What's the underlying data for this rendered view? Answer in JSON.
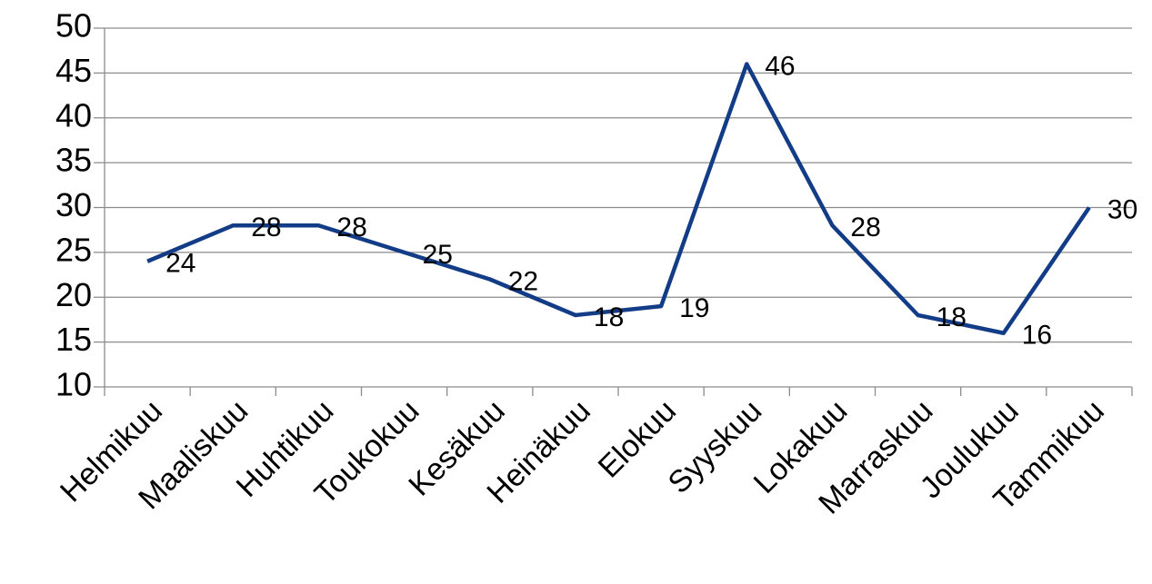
{
  "chart_data": {
    "type": "line",
    "categories": [
      "Helmikuu",
      "Maaliskuu",
      "Huhtikuu",
      "Toukokuu",
      "Kesäkuu",
      "Heinäkuu",
      "Elokuu",
      "Syyskuu",
      "Lokakuu",
      "Marraskuu",
      "Joulukuu",
      "Tammikuu"
    ],
    "values": [
      24,
      28,
      28,
      25,
      22,
      18,
      19,
      46,
      28,
      18,
      16,
      30
    ],
    "color": "#133c87",
    "ylim": [
      10,
      50
    ],
    "yticks": [
      10,
      15,
      20,
      25,
      30,
      35,
      40,
      45,
      50
    ],
    "grid": true
  }
}
